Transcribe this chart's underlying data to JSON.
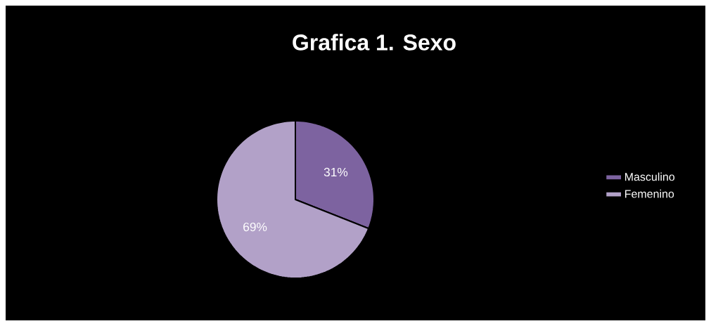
{
  "chart_data": {
    "type": "pie",
    "title": "Grafica 1. Sexo",
    "categories": [
      "Masculino",
      "Femenino"
    ],
    "values": [
      31,
      69
    ],
    "colors": [
      "#7d63a0",
      "#b2a1c8"
    ],
    "value_labels": [
      "31%",
      "69%"
    ],
    "legend": "right"
  }
}
